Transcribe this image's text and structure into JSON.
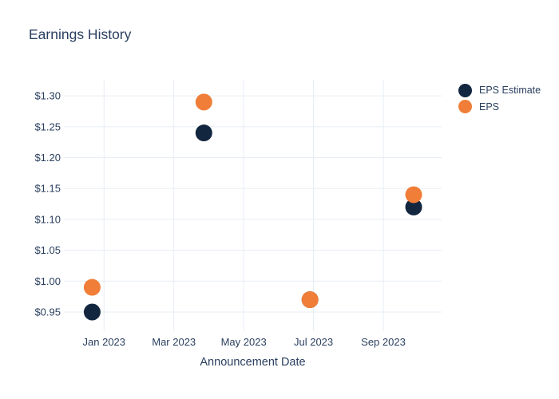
{
  "chart_data": {
    "type": "scatter",
    "title": "Earnings History",
    "xlabel": "Announcement Date",
    "ylabel": "",
    "x_tick_labels": [
      "Jan 2023",
      "Mar 2023",
      "May 2023",
      "Jul 2023",
      "Sep 2023"
    ],
    "x_tick_positions_months": [
      0,
      2,
      4,
      6,
      8
    ],
    "x_range_months": [
      -1.15,
      9.67
    ],
    "y_tick_values": [
      0.95,
      1.0,
      1.05,
      1.1,
      1.15,
      1.2,
      1.25,
      1.3
    ],
    "y_tick_labels": [
      "$0.95",
      "$1.00",
      "$1.05",
      "$1.10",
      "$1.15",
      "$1.20",
      "$1.25",
      "$1.30"
    ],
    "y_range": [
      0.919,
      1.326
    ],
    "grid": true,
    "legend_position": "right",
    "marker_diameter_px": 21,
    "colors": {
      "grid": "#e7edf5",
      "text": "#2a3f5f",
      "background": "#ffffff"
    },
    "series": [
      {
        "name": "EPS Estimate",
        "color": "#132640",
        "x_months": [
          -0.34,
          2.86,
          5.9,
          8.87
        ],
        "values": [
          0.95,
          1.24,
          0.97,
          1.12
        ]
      },
      {
        "name": "EPS",
        "color": "#f07e38",
        "x_months": [
          -0.34,
          2.86,
          5.9,
          8.87
        ],
        "values": [
          0.99,
          1.29,
          0.97,
          1.14
        ]
      }
    ]
  }
}
